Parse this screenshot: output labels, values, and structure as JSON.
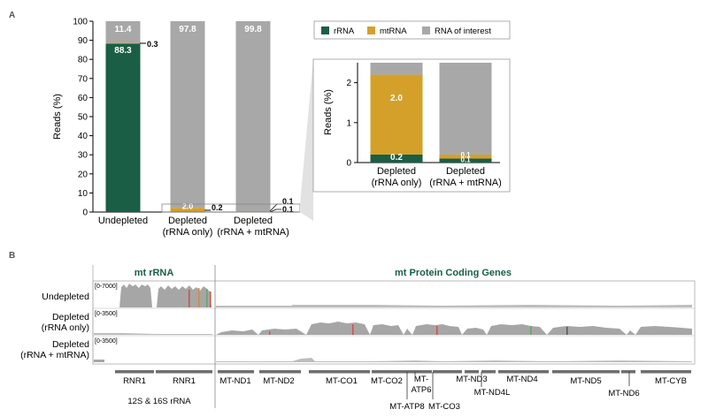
{
  "panel_a": {
    "label": "A",
    "ylabel": "Reads (%)",
    "yticks": [
      "0",
      "10",
      "20",
      "30",
      "40",
      "50",
      "60",
      "70",
      "80",
      "90",
      "100"
    ],
    "categories": [
      {
        "line1": "Undepleted",
        "line2": ""
      },
      {
        "line1": "Depleted",
        "line2": "(rRNA only)"
      },
      {
        "line1": "Depleted",
        "line2": "(rRNA + mtRNA)"
      }
    ],
    "bar_labels": {
      "undepleted_rrna": "88.3",
      "undepleted_roi": "11.4",
      "undepleted_mt": "0.3",
      "rrnaonly_mt": "2.0",
      "rrnaonly_roi": "97.8",
      "rrnaonly_rrna": "0.2",
      "both_roi": "99.8",
      "both_mt": "0.1",
      "both_rrna": "0.1"
    },
    "legend": [
      "rRNA",
      "mtRNA",
      "RNA of interest"
    ],
    "inset": {
      "ylabel": "Reads (%)",
      "yticks": [
        "0",
        "1",
        "2"
      ],
      "categories": [
        {
          "line1": "Depleted",
          "line2": "(rRNA only)"
        },
        {
          "line1": "Depleted",
          "line2": "(rRNA + mtRNA)"
        }
      ],
      "bar_labels": {
        "a_mt": "2.0",
        "a_rrna": "0.2",
        "b_mt": "0.1",
        "b_rrna": "0.1"
      }
    }
  },
  "panel_b": {
    "label": "B",
    "header_left": "mt rRNA",
    "header_right": "mt Protein Coding Genes",
    "tracks": [
      {
        "line1": "Undepleted",
        "line2": "",
        "range": "[0-7000]"
      },
      {
        "line1": "Depleted",
        "line2": "(rRNA only)",
        "range": "[0-3500]"
      },
      {
        "line1": "Depleted",
        "line2": "(rRNA + mtRNA)",
        "range": "[0-3500]"
      }
    ],
    "genes_top": [
      "RNR1",
      "RNR1",
      "MT-ND1",
      "MT-ND2",
      "MT-CO1",
      "MT-CO2",
      "MT-CO3",
      "MT-ND3",
      "MT-ND4",
      "MT-ND5",
      "MT-CYB"
    ],
    "gene_atp6": [
      "MT-",
      "ATP6"
    ],
    "gene_atp8": "MT-ATP8",
    "gene_nd4l": "MT-ND4L",
    "gene_nd6": "MT-ND6",
    "rrna_caption": "12S & 16S rRNA"
  },
  "colors": {
    "rrna": "#1a5e45",
    "mtrna": "#d4a02a",
    "roi": "#a8a8a8",
    "title_green": "#1a5e45"
  },
  "chart_data": [
    {
      "type": "bar",
      "title": "",
      "ylabel": "Reads (%)",
      "ylim": [
        0,
        100
      ],
      "categories": [
        "Undepleted",
        "Depleted (rRNA only)",
        "Depleted (rRNA + mtRNA)"
      ],
      "stacked": true,
      "series": [
        {
          "name": "rRNA",
          "values": [
            88.3,
            0.2,
            0.1
          ]
        },
        {
          "name": "mtRNA",
          "values": [
            0.3,
            2.0,
            0.1
          ]
        },
        {
          "name": "RNA of interest",
          "values": [
            11.4,
            97.8,
            99.8
          ]
        }
      ],
      "legend_position": "top-right"
    },
    {
      "type": "bar",
      "title": "",
      "ylabel": "Reads (%)",
      "ylim": [
        0,
        2.5
      ],
      "categories": [
        "Depleted (rRNA only)",
        "Depleted (rRNA + mtRNA)"
      ],
      "stacked": true,
      "series": [
        {
          "name": "rRNA",
          "values": [
            0.2,
            0.1
          ]
        },
        {
          "name": "mtRNA",
          "values": [
            2.0,
            0.1
          ]
        },
        {
          "name": "RNA of interest",
          "values": [
            0.3,
            2.3
          ]
        }
      ]
    }
  ]
}
